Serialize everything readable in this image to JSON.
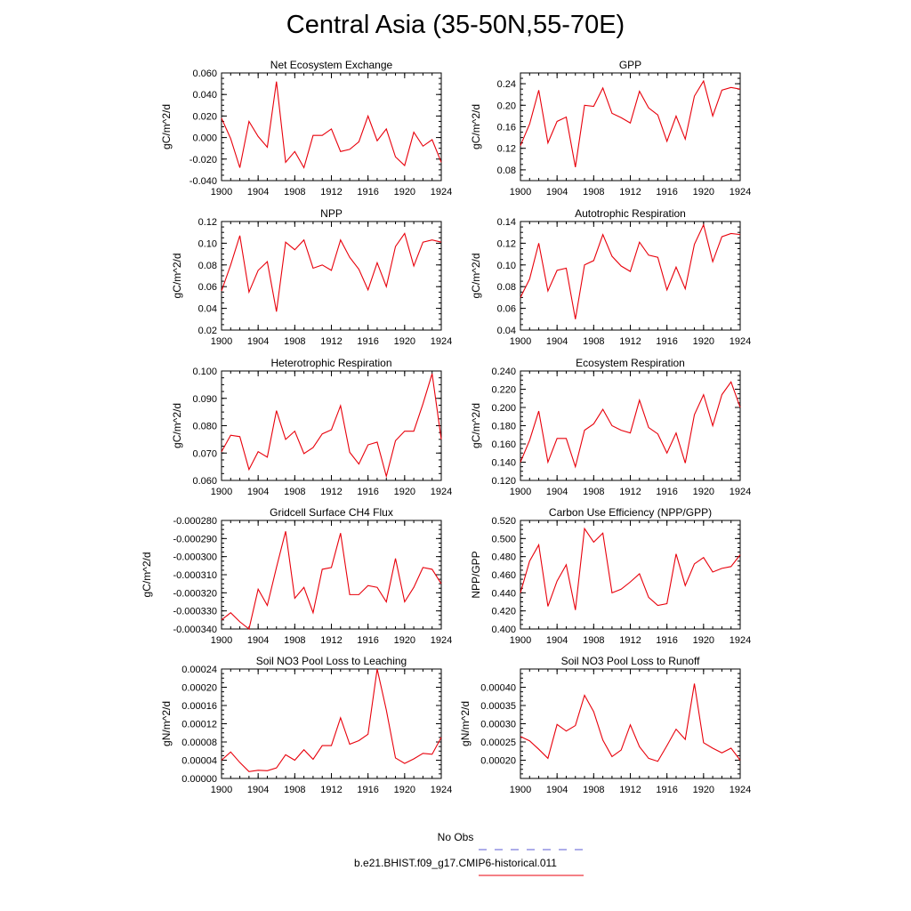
{
  "title": "Central Asia (35-50N,55-70E)",
  "colors": {
    "model": "#e8000b",
    "obs": "#5b5bd6"
  },
  "legend": {
    "obs_label": "No Obs",
    "model_label": "b.e21.BHIST.f09_g17.CMIP6-historical.011"
  },
  "chart_data": [
    {
      "type": "line",
      "title": "Net Ecosystem Exchange",
      "ylabel": "gC/m^2/d",
      "xlim": [
        1900,
        1924
      ],
      "ylim": [
        -0.04,
        0.06
      ],
      "x_ticks": [
        1900,
        1904,
        1908,
        1912,
        1916,
        1920,
        1924
      ],
      "y_ticks": [
        "-0.040",
        "-0.020",
        "0.000",
        "0.020",
        "0.040",
        "0.060"
      ],
      "y_tick_values": [
        -0.04,
        -0.02,
        0.0,
        0.02,
        0.04,
        0.06
      ],
      "x": [
        1900,
        1901,
        1902,
        1903,
        1904,
        1905,
        1906,
        1907,
        1908,
        1909,
        1910,
        1911,
        1912,
        1913,
        1914,
        1915,
        1916,
        1917,
        1918,
        1919,
        1920,
        1921,
        1922,
        1923,
        1924
      ],
      "series": [
        {
          "name": "b.e21.BHIST.f09_g17.CMIP6-historical.011",
          "values": [
            0.018,
            -0.001,
            -0.028,
            0.015,
            0.001,
            -0.009,
            0.052,
            -0.023,
            -0.013,
            -0.028,
            0.002,
            0.002,
            0.008,
            -0.013,
            -0.011,
            -0.004,
            0.02,
            -0.003,
            0.008,
            -0.018,
            -0.026,
            0.005,
            -0.008,
            -0.002,
            -0.023
          ]
        }
      ]
    },
    {
      "type": "line",
      "title": "GPP",
      "ylabel": "gC/m^2/d",
      "xlim": [
        1900,
        1924
      ],
      "ylim": [
        0.06,
        0.26
      ],
      "x_ticks": [
        1900,
        1904,
        1908,
        1912,
        1916,
        1920,
        1924
      ],
      "y_ticks": [
        "0.08",
        "0.12",
        "0.16",
        "0.20",
        "0.24"
      ],
      "y_tick_values": [
        0.08,
        0.12,
        0.16,
        0.2,
        0.24
      ],
      "x": [
        1900,
        1901,
        1902,
        1903,
        1904,
        1905,
        1906,
        1907,
        1908,
        1909,
        1910,
        1911,
        1912,
        1913,
        1914,
        1915,
        1916,
        1917,
        1918,
        1919,
        1920,
        1921,
        1922,
        1923,
        1924
      ],
      "series": [
        {
          "name": "b.e21.BHIST.f09_g17.CMIP6-historical.011",
          "values": [
            0.125,
            0.165,
            0.228,
            0.13,
            0.17,
            0.178,
            0.085,
            0.2,
            0.198,
            0.232,
            0.185,
            0.177,
            0.167,
            0.226,
            0.195,
            0.182,
            0.133,
            0.18,
            0.137,
            0.217,
            0.245,
            0.18,
            0.228,
            0.233,
            0.23
          ]
        }
      ]
    },
    {
      "type": "line",
      "title": "NPP",
      "ylabel": "gC/m^2/d",
      "xlim": [
        1900,
        1924
      ],
      "ylim": [
        0.02,
        0.12
      ],
      "x_ticks": [
        1900,
        1904,
        1908,
        1912,
        1916,
        1920,
        1924
      ],
      "y_ticks": [
        "0.02",
        "0.04",
        "0.06",
        "0.08",
        "0.10",
        "0.12"
      ],
      "y_tick_values": [
        0.02,
        0.04,
        0.06,
        0.08,
        0.1,
        0.12
      ],
      "x": [
        1900,
        1901,
        1902,
        1903,
        1904,
        1905,
        1906,
        1907,
        1908,
        1909,
        1910,
        1911,
        1912,
        1913,
        1914,
        1915,
        1916,
        1917,
        1918,
        1919,
        1920,
        1921,
        1922,
        1923,
        1924
      ],
      "series": [
        {
          "name": "b.e21.BHIST.f09_g17.CMIP6-historical.011",
          "values": [
            0.056,
            0.08,
            0.107,
            0.055,
            0.075,
            0.083,
            0.037,
            0.101,
            0.094,
            0.103,
            0.077,
            0.08,
            0.075,
            0.103,
            0.087,
            0.076,
            0.057,
            0.082,
            0.06,
            0.097,
            0.109,
            0.079,
            0.101,
            0.103,
            0.101
          ]
        }
      ]
    },
    {
      "type": "line",
      "title": "Autotrophic Respiration",
      "ylabel": "gC/m^2/d",
      "xlim": [
        1900,
        1924
      ],
      "ylim": [
        0.04,
        0.14
      ],
      "x_ticks": [
        1900,
        1904,
        1908,
        1912,
        1916,
        1920,
        1924
      ],
      "y_ticks": [
        "0.04",
        "0.06",
        "0.08",
        "0.10",
        "0.12",
        "0.14"
      ],
      "y_tick_values": [
        0.04,
        0.06,
        0.08,
        0.1,
        0.12,
        0.14
      ],
      "x": [
        1900,
        1901,
        1902,
        1903,
        1904,
        1905,
        1906,
        1907,
        1908,
        1909,
        1910,
        1911,
        1912,
        1913,
        1914,
        1915,
        1916,
        1917,
        1918,
        1919,
        1920,
        1921,
        1922,
        1923,
        1924
      ],
      "series": [
        {
          "name": "b.e21.BHIST.f09_g17.CMIP6-historical.011",
          "values": [
            0.07,
            0.087,
            0.12,
            0.076,
            0.095,
            0.097,
            0.05,
            0.1,
            0.104,
            0.128,
            0.108,
            0.099,
            0.094,
            0.121,
            0.109,
            0.107,
            0.077,
            0.098,
            0.078,
            0.119,
            0.137,
            0.103,
            0.126,
            0.129,
            0.128
          ]
        }
      ]
    },
    {
      "type": "line",
      "title": "Heterotrophic Respiration",
      "ylabel": "gC/m^2/d",
      "xlim": [
        1900,
        1924
      ],
      "ylim": [
        0.06,
        0.1
      ],
      "x_ticks": [
        1900,
        1904,
        1908,
        1912,
        1916,
        1920,
        1924
      ],
      "y_ticks": [
        "0.060",
        "0.070",
        "0.080",
        "0.090",
        "0.100"
      ],
      "y_tick_values": [
        0.06,
        0.07,
        0.08,
        0.09,
        0.1
      ],
      "x": [
        1900,
        1901,
        1902,
        1903,
        1904,
        1905,
        1906,
        1907,
        1908,
        1909,
        1910,
        1911,
        1912,
        1913,
        1914,
        1915,
        1916,
        1917,
        1918,
        1919,
        1920,
        1921,
        1922,
        1923,
        1924
      ],
      "series": [
        {
          "name": "b.e21.BHIST.f09_g17.CMIP6-historical.011",
          "values": [
            0.0705,
            0.0765,
            0.076,
            0.064,
            0.0705,
            0.0685,
            0.0855,
            0.075,
            0.078,
            0.0698,
            0.072,
            0.077,
            0.0785,
            0.0873,
            0.0703,
            0.066,
            0.073,
            0.074,
            0.0615,
            0.0745,
            0.078,
            0.078,
            0.088,
            0.099,
            0.075
          ]
        }
      ]
    },
    {
      "type": "line",
      "title": "Ecosystem Respiration",
      "ylabel": "gC/m^2/d",
      "xlim": [
        1900,
        1924
      ],
      "ylim": [
        0.12,
        0.24
      ],
      "x_ticks": [
        1900,
        1904,
        1908,
        1912,
        1916,
        1920,
        1924
      ],
      "y_ticks": [
        "0.120",
        "0.140",
        "0.160",
        "0.180",
        "0.200",
        "0.220",
        "0.240"
      ],
      "y_tick_values": [
        0.12,
        0.14,
        0.16,
        0.18,
        0.2,
        0.22,
        0.24
      ],
      "x": [
        1900,
        1901,
        1902,
        1903,
        1904,
        1905,
        1906,
        1907,
        1908,
        1909,
        1910,
        1911,
        1912,
        1913,
        1914,
        1915,
        1916,
        1917,
        1918,
        1919,
        1920,
        1921,
        1922,
        1923,
        1924
      ],
      "series": [
        {
          "name": "b.e21.BHIST.f09_g17.CMIP6-historical.011",
          "values": [
            0.14,
            0.164,
            0.196,
            0.14,
            0.166,
            0.166,
            0.135,
            0.175,
            0.182,
            0.198,
            0.18,
            0.175,
            0.172,
            0.208,
            0.178,
            0.171,
            0.15,
            0.172,
            0.139,
            0.192,
            0.214,
            0.18,
            0.214,
            0.228,
            0.2
          ]
        }
      ]
    },
    {
      "type": "line",
      "title": "Gridcell Surface CH4 Flux",
      "ylabel": "gC/m^2/d",
      "xlim": [
        1900,
        1924
      ],
      "ylim": [
        -0.00034,
        -0.00028
      ],
      "x_ticks": [
        1900,
        1904,
        1908,
        1912,
        1916,
        1920,
        1924
      ],
      "y_ticks": [
        "-0.000340",
        "-0.000330",
        "-0.000320",
        "-0.000310",
        "-0.000300",
        "-0.000290",
        "-0.000280"
      ],
      "y_tick_values": [
        -0.00034,
        -0.00033,
        -0.00032,
        -0.00031,
        -0.0003,
        -0.00029,
        -0.00028
      ],
      "x": [
        1900,
        1901,
        1902,
        1903,
        1904,
        1905,
        1906,
        1907,
        1908,
        1909,
        1910,
        1911,
        1912,
        1913,
        1914,
        1915,
        1916,
        1917,
        1918,
        1919,
        1920,
        1921,
        1922,
        1923,
        1924
      ],
      "series": [
        {
          "name": "b.e21.BHIST.f09_g17.CMIP6-historical.011",
          "values": [
            -0.000335,
            -0.000331,
            -0.000336,
            -0.00034,
            -0.000318,
            -0.000327,
            -0.000306,
            -0.000286,
            -0.000323,
            -0.000317,
            -0.000331,
            -0.000307,
            -0.000306,
            -0.000287,
            -0.000321,
            -0.000321,
            -0.000316,
            -0.000317,
            -0.000325,
            -0.000301,
            -0.000325,
            -0.000317,
            -0.000306,
            -0.000307,
            -0.000315
          ]
        }
      ]
    },
    {
      "type": "line",
      "title": "Carbon Use Efficiency (NPP/GPP)",
      "ylabel": "NPP/GPP",
      "xlim": [
        1900,
        1924
      ],
      "ylim": [
        0.4,
        0.52
      ],
      "x_ticks": [
        1900,
        1904,
        1908,
        1912,
        1916,
        1920,
        1924
      ],
      "y_ticks": [
        "0.400",
        "0.420",
        "0.440",
        "0.460",
        "0.480",
        "0.500",
        "0.520"
      ],
      "y_tick_values": [
        0.4,
        0.42,
        0.44,
        0.46,
        0.48,
        0.5,
        0.52
      ],
      "x": [
        1900,
        1901,
        1902,
        1903,
        1904,
        1905,
        1906,
        1907,
        1908,
        1909,
        1910,
        1911,
        1912,
        1913,
        1914,
        1915,
        1916,
        1917,
        1918,
        1919,
        1920,
        1921,
        1922,
        1923,
        1924
      ],
      "series": [
        {
          "name": "b.e21.BHIST.f09_g17.CMIP6-historical.011",
          "values": [
            0.44,
            0.475,
            0.493,
            0.425,
            0.453,
            0.471,
            0.421,
            0.511,
            0.496,
            0.506,
            0.44,
            0.444,
            0.452,
            0.461,
            0.435,
            0.426,
            0.428,
            0.483,
            0.448,
            0.472,
            0.479,
            0.463,
            0.467,
            0.469,
            0.482
          ]
        }
      ]
    },
    {
      "type": "line",
      "title": "Soil NO3 Pool Loss to Leaching",
      "ylabel": "gN/m^2/d",
      "xlim": [
        1900,
        1924
      ],
      "ylim": [
        0.0,
        0.00024
      ],
      "x_ticks": [
        1900,
        1904,
        1908,
        1912,
        1916,
        1920,
        1924
      ],
      "y_ticks": [
        "0.00000",
        "0.00004",
        "0.00008",
        "0.00012",
        "0.00016",
        "0.00020",
        "0.00024"
      ],
      "y_tick_values": [
        0.0,
        4e-05,
        8e-05,
        0.00012,
        0.00016,
        0.0002,
        0.00024
      ],
      "x": [
        1900,
        1901,
        1902,
        1903,
        1904,
        1905,
        1906,
        1907,
        1908,
        1909,
        1910,
        1911,
        1912,
        1913,
        1914,
        1915,
        1916,
        1917,
        1918,
        1919,
        1920,
        1921,
        1922,
        1923,
        1924
      ],
      "series": [
        {
          "name": "b.e21.BHIST.f09_g17.CMIP6-historical.011",
          "values": [
            4e-05,
            5.8e-05,
            3.5e-05,
            1.5e-05,
            1.8e-05,
            1.7e-05,
            2.3e-05,
            5.2e-05,
            4e-05,
            6.3e-05,
            4.2e-05,
            7.2e-05,
            7.2e-05,
            0.000133,
            7.5e-05,
            8.3e-05,
            9.7e-05,
            0.00024,
            0.00015,
            4.5e-05,
            3.3e-05,
            4.3e-05,
            5.5e-05,
            5.3e-05,
            9e-05
          ]
        }
      ]
    },
    {
      "type": "line",
      "title": "Soil NO3 Pool Loss to Runoff",
      "ylabel": "gN/m^2/d",
      "xlim": [
        1900,
        1924
      ],
      "ylim": [
        0.00015,
        0.00045
      ],
      "x_ticks": [
        1900,
        1904,
        1908,
        1912,
        1916,
        1920,
        1924
      ],
      "y_ticks": [
        "0.00020",
        "0.00025",
        "0.00030",
        "0.00035",
        "0.00040"
      ],
      "y_tick_values": [
        0.0002,
        0.00025,
        0.0003,
        0.00035,
        0.0004
      ],
      "x": [
        1900,
        1901,
        1902,
        1903,
        1904,
        1905,
        1906,
        1907,
        1908,
        1909,
        1910,
        1911,
        1912,
        1913,
        1914,
        1915,
        1916,
        1917,
        1918,
        1919,
        1920,
        1921,
        1922,
        1923,
        1924
      ],
      "series": [
        {
          "name": "b.e21.BHIST.f09_g17.CMIP6-historical.011",
          "values": [
            0.000265,
            0.000253,
            0.00023,
            0.000205,
            0.000298,
            0.00028,
            0.000295,
            0.000378,
            0.000333,
            0.000255,
            0.00021,
            0.000228,
            0.000297,
            0.000237,
            0.000205,
            0.000197,
            0.00024,
            0.000285,
            0.000257,
            0.00041,
            0.000248,
            0.000233,
            0.00022,
            0.000233,
            0.0002
          ]
        }
      ]
    }
  ]
}
